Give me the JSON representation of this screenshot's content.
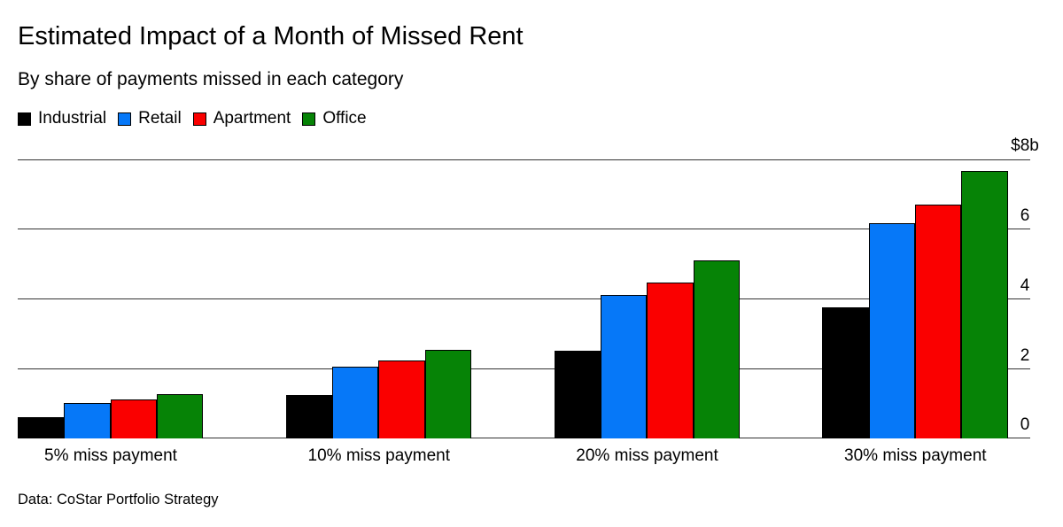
{
  "header": {
    "title": "Estimated Impact of a Month of Missed Rent",
    "subtitle": "By share of payments missed in each category"
  },
  "legend": [
    {
      "label": "Industrial",
      "color": "#000000"
    },
    {
      "label": "Retail",
      "color": "#0678f8"
    },
    {
      "label": "Apartment",
      "color": "#fa0000"
    },
    {
      "label": "Office",
      "color": "#068306"
    }
  ],
  "chart_data": {
    "type": "bar",
    "title": "Estimated Impact of a Month of Missed Rent",
    "subtitle": "By share of payments missed in each category",
    "categories": [
      "5% miss payment",
      "10% miss payment",
      "20% miss payment",
      "30% miss payment"
    ],
    "series": [
      {
        "name": "Industrial",
        "color": "#000000",
        "values": [
          0.63,
          1.26,
          2.52,
          3.78
        ]
      },
      {
        "name": "Retail",
        "color": "#0678f8",
        "values": [
          1.03,
          2.06,
          4.12,
          6.18
        ]
      },
      {
        "name": "Apartment",
        "color": "#fa0000",
        "values": [
          1.12,
          2.24,
          4.48,
          6.72
        ]
      },
      {
        "name": "Office",
        "color": "#068306",
        "values": [
          1.28,
          2.56,
          5.12,
          7.68
        ]
      }
    ],
    "xlabel": "",
    "ylabel": "",
    "ylim": [
      0,
      8
    ],
    "yticks": [
      0,
      2,
      4,
      6,
      8
    ],
    "ytick_labels": [
      "0",
      "2",
      "4",
      "6",
      "$8b"
    ],
    "grid": true,
    "legend_position": "top"
  },
  "footer": {
    "source": "Data: CoStar Portfolio Strategy"
  }
}
